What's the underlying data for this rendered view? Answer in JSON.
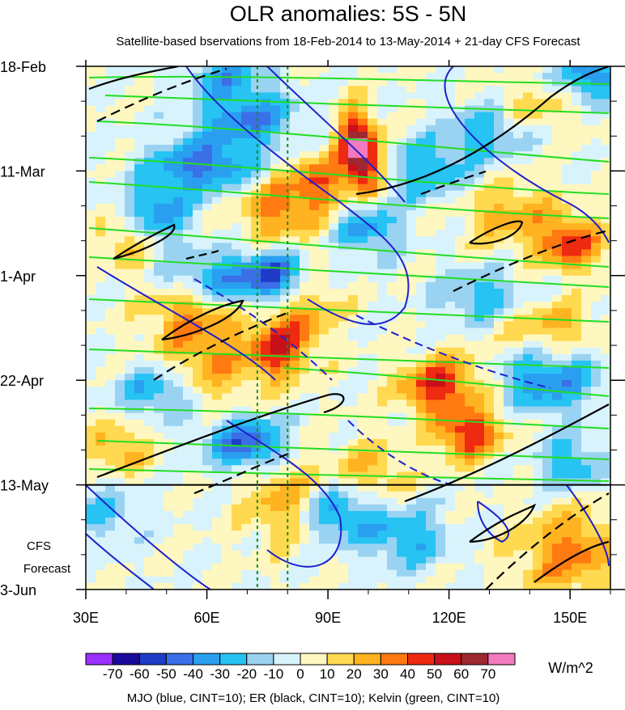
{
  "chart_data": {
    "type": "heatmap",
    "title": "OLR anomalies: 5S - 5N",
    "subtitle": "Satellite-based bservations from 18-Feb-2014 to 13-May-2014 + 21-day CFS Forecast",
    "x_axis": {
      "unit": "longitude",
      "range": [
        30,
        160
      ],
      "tick_values": [
        30,
        60,
        90,
        120,
        150
      ],
      "tick_labels": [
        "30E",
        "60E",
        "90E",
        "120E",
        "150E"
      ]
    },
    "y_axis": {
      "unit": "date",
      "range": [
        "2014-02-18",
        "2014-06-03"
      ],
      "direction": "time increases downward",
      "tick_values": [
        "2014-02-18",
        "2014-03-11",
        "2014-04-01",
        "2014-04-22",
        "2014-05-13",
        "2014-06-03"
      ],
      "tick_labels": [
        "18-Feb",
        "11-Mar",
        "1-Apr",
        "22-Apr",
        "13-May",
        "3-Jun"
      ]
    },
    "observation_end": "2014-05-13",
    "forecast_label": [
      "CFS",
      "Forecast"
    ],
    "reference_longitudes": [
      72.5,
      80
    ],
    "colorbar": {
      "unit": "W/m^2",
      "levels": [
        -70,
        -60,
        -50,
        -40,
        -30,
        -20,
        -10,
        0,
        10,
        20,
        30,
        40,
        50,
        60,
        70
      ],
      "labels": [
        "-70",
        "-60",
        "-50",
        "-40",
        "-30",
        "-20",
        "-10",
        "0",
        "10",
        "20",
        "30",
        "40",
        "50",
        "60",
        "70"
      ],
      "colors": [
        "#9b30ff",
        "#1a0a9c",
        "#1f3cc8",
        "#3a6fe8",
        "#2a9ff0",
        "#26c3f3",
        "#9ad3f2",
        "#d8f3fb",
        "#fff7c0",
        "#ffd94f",
        "#ffb320",
        "#ff7a10",
        "#ee2a10",
        "#c8101a",
        "#9e2830",
        "#f47ac0"
      ]
    },
    "overlays": [
      {
        "name": "MJO",
        "color": "blue",
        "cint": 10
      },
      {
        "name": "ER",
        "color": "black",
        "cint": 10
      },
      {
        "name": "Kelvin",
        "color": "green",
        "cint": 10
      }
    ],
    "footnote": "MJO (blue, CINT=10); ER (black, CINT=10); Kelvin (green, CINT=10)"
  }
}
